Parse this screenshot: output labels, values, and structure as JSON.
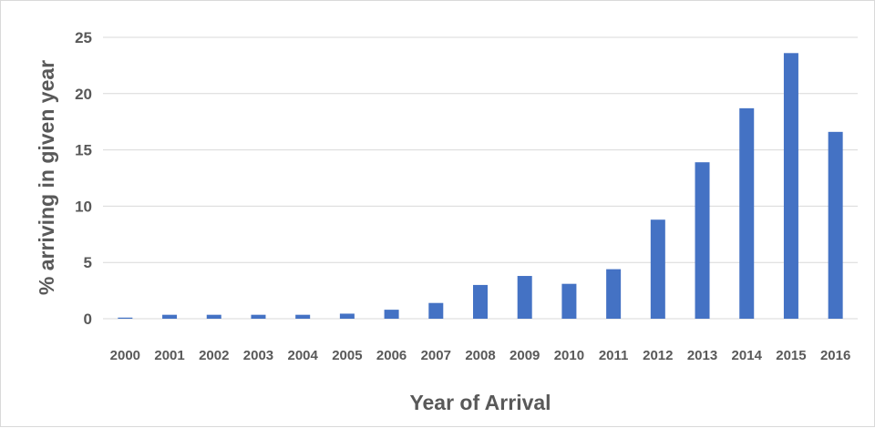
{
  "chart_data": {
    "type": "bar",
    "title": "",
    "xlabel": "Year of Arrival",
    "ylabel": "% arriving in given year",
    "ylim": [
      0,
      25
    ],
    "yticks": [
      0,
      5,
      10,
      15,
      20,
      25
    ],
    "grid": true,
    "legend": "none",
    "bar_color": "#4472c4",
    "grid_color": "#d9d9d9",
    "text_color": "#595959",
    "categories": [
      "2000",
      "2001",
      "2002",
      "2003",
      "2004",
      "2005",
      "2006",
      "2007",
      "2008",
      "2009",
      "2010",
      "2011",
      "2012",
      "2013",
      "2014",
      "2015",
      "2016"
    ],
    "values": [
      0.1,
      0.35,
      0.35,
      0.35,
      0.35,
      0.45,
      0.8,
      1.4,
      3.0,
      3.8,
      3.1,
      4.4,
      8.8,
      13.9,
      18.7,
      23.6,
      16.6
    ]
  }
}
